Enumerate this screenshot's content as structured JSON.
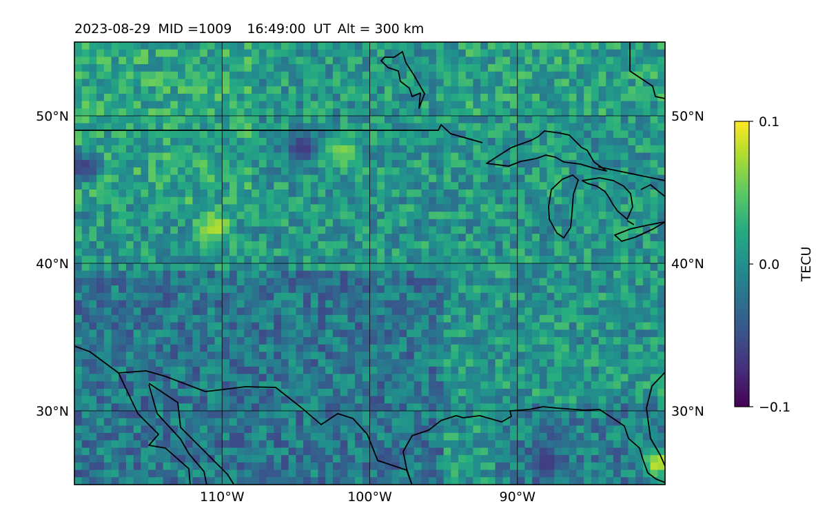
{
  "title": {
    "date": "2023-08-29",
    "mid": "MID =1009",
    "time": "16:49:00",
    "time_unit": "UT",
    "altitude": "Alt = 300 km"
  },
  "map": {
    "projection": "equirectangular",
    "lon_range": [
      -120,
      -80
    ],
    "lat_range": [
      25,
      55
    ],
    "gridlines": true,
    "coastlines_color": "#000000"
  },
  "axes": {
    "lat_ticks": [
      {
        "value": 50,
        "label": "50°N"
      },
      {
        "value": 40,
        "label": "40°N"
      },
      {
        "value": 30,
        "label": "30°N"
      }
    ],
    "lon_ticks": [
      {
        "value": -110,
        "label": "110°W"
      },
      {
        "value": -100,
        "label": "100°W"
      },
      {
        "value": -90,
        "label": "90°W"
      }
    ]
  },
  "colorbar": {
    "label": "TECU",
    "colormap": "viridis",
    "min": -0.1,
    "max": 0.1,
    "ticks": [
      {
        "value": 0.1,
        "label": "0.1"
      },
      {
        "value": 0.0,
        "label": "0.0"
      },
      {
        "value": -0.1,
        "label": "−0.1"
      }
    ]
  },
  "chart_data": {
    "type": "heatmap",
    "title": "2023-08-29  MID =1009    16:49:00  UT  Alt = 300 km",
    "variable": "TECU",
    "value_range": [
      -0.1,
      0.1
    ],
    "x_range": [
      -120,
      -80
    ],
    "y_range": [
      25,
      55
    ],
    "grid": true,
    "features": [
      {
        "description": "positive anomaly",
        "lon": -110.5,
        "lat": 42.5,
        "value": 0.09
      },
      {
        "description": "positive anomaly",
        "lon": -102,
        "lat": 47.5,
        "value": 0.07
      },
      {
        "description": "positive anomaly",
        "lon": -80.5,
        "lat": 26.5,
        "value": 0.1
      },
      {
        "description": "negative anomaly",
        "lon": -119.5,
        "lat": 46.5,
        "value": -0.08
      },
      {
        "description": "negative anomaly",
        "lon": -104.5,
        "lat": 48,
        "value": -0.08
      },
      {
        "description": "negative region",
        "lon": -88,
        "lat": 26.5,
        "value": -0.07
      }
    ]
  }
}
